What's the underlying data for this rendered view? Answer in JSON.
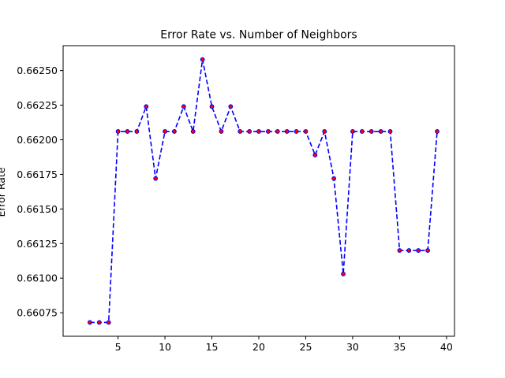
{
  "chart_data": {
    "type": "line",
    "title": "Error Rate vs. Number of Neighbors",
    "xlabel": "",
    "ylabel": "Error Rate",
    "xlim": [
      -0.85,
      40.85
    ],
    "ylim": [
      0.66058,
      0.66268
    ],
    "xticks": [
      5,
      10,
      15,
      20,
      25,
      30,
      35,
      40
    ],
    "yticks": [
      0.66075,
      0.661,
      0.66125,
      0.6615,
      0.66175,
      0.662,
      0.66225,
      0.6625
    ],
    "ytick_labels": [
      "0.66075",
      "0.66100",
      "0.66125",
      "0.66150",
      "0.66175",
      "0.66200",
      "0.66225",
      "0.66250"
    ],
    "grid": false,
    "line_color": "#0000ff",
    "marker_color": "#ff0000",
    "x": [
      2,
      3,
      4,
      5,
      6,
      7,
      8,
      9,
      10,
      11,
      12,
      13,
      14,
      15,
      16,
      17,
      18,
      19,
      20,
      21,
      22,
      23,
      24,
      25,
      26,
      27,
      28,
      29,
      30,
      31,
      32,
      33,
      34,
      35,
      36,
      37,
      38,
      39
    ],
    "y": [
      0.66068,
      0.66068,
      0.66068,
      0.66206,
      0.66206,
      0.66206,
      0.66224,
      0.66172,
      0.66206,
      0.66206,
      0.66224,
      0.66206,
      0.66258,
      0.66224,
      0.66206,
      0.66224,
      0.66206,
      0.66206,
      0.66206,
      0.66206,
      0.66206,
      0.66206,
      0.66206,
      0.66206,
      0.66189,
      0.66206,
      0.66172,
      0.66103,
      0.66206,
      0.66206,
      0.66206,
      0.66206,
      0.66206,
      0.6612,
      0.6612,
      0.6612,
      0.6612,
      0.66206
    ]
  }
}
